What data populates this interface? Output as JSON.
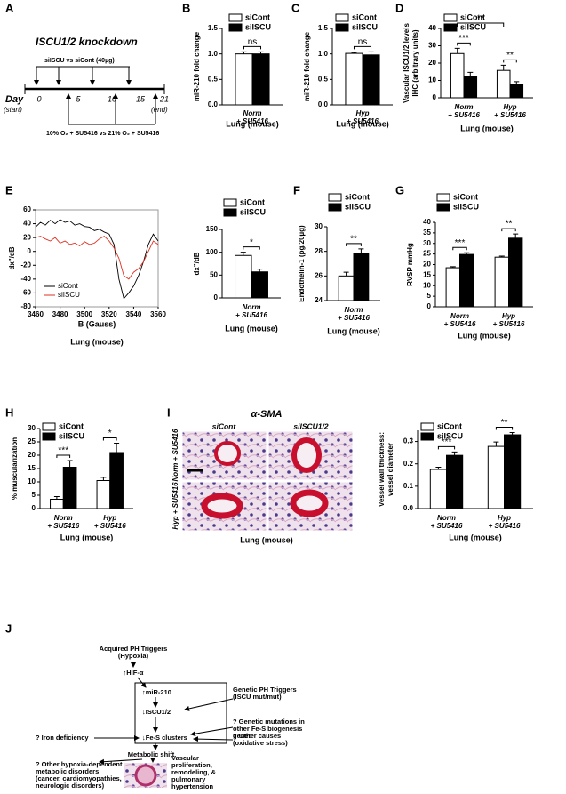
{
  "panels": [
    "A",
    "B",
    "C",
    "D",
    "E",
    "F",
    "G",
    "H",
    "I",
    "J"
  ],
  "timeline": {
    "title": "ISCU1/2 knockdown",
    "treatment": "siISCU vs siCont (40µg)",
    "day_label": "Day",
    "days": [
      "0",
      "5",
      "10",
      "15",
      "21"
    ],
    "start": "(start)",
    "end": "(end)",
    "exposure": "10% O₂ + SU5416 vs 21% O₂ + SU5416"
  },
  "chart_data": [
    {
      "type": "bar",
      "ylabel": [
        "miR-210 fold change"
      ],
      "ylim": [
        0,
        1.5
      ],
      "yticks": [
        {
          "value": 0,
          "label": "0.0"
        },
        0.5,
        {
          "value": 1,
          "label": "1.0"
        },
        1.5
      ],
      "categories": [
        "Norm + SU5416"
      ],
      "xlabel": "Lung (mouse)",
      "series": [
        {
          "name": "siCont",
          "color": "#ffffff",
          "values": [
            1.0
          ],
          "errors": [
            0.04
          ]
        },
        {
          "name": "siISCU",
          "color": "#000000",
          "values": [
            1.0
          ],
          "errors": [
            0.04
          ]
        }
      ],
      "significance": [
        "ns"
      ]
    },
    {
      "type": "bar",
      "ylabel": [
        "miR-210 fold change"
      ],
      "ylim": [
        0,
        1.5
      ],
      "yticks": [
        {
          "value": 0,
          "label": "0.0"
        },
        0.5,
        {
          "value": 1,
          "label": "1.0"
        },
        1.5
      ],
      "categories": [
        "Hyp + SU5416"
      ],
      "xlabel": "Lung (mouse)",
      "series": [
        {
          "name": "siCont",
          "color": "#ffffff",
          "values": [
            1.01
          ],
          "errors": [
            0.02
          ]
        },
        {
          "name": "siISCU",
          "color": "#000000",
          "values": [
            0.98
          ],
          "errors": [
            0.06
          ]
        }
      ],
      "significance": [
        "ns"
      ]
    },
    {
      "type": "bar",
      "ylabel": [
        "Vascular ISCU1/2 levels",
        "IHC (arbitrary units)"
      ],
      "ylim": [
        0,
        40
      ],
      "yticks": [
        0,
        10,
        20,
        30,
        40
      ],
      "categories": [
        "Norm + SU5416",
        "Hyp + SU5416"
      ],
      "xlabel": "Lung (mouse)",
      "series": [
        {
          "name": "siCont",
          "color": "#ffffff",
          "values": [
            25.5,
            15.8
          ],
          "errors": [
            3,
            3
          ]
        },
        {
          "name": "siISCU",
          "color": "#000000",
          "values": [
            12.2,
            7.8
          ],
          "errors": [
            2.5,
            1.5
          ]
        }
      ],
      "significance": [
        "***",
        "**"
      ],
      "cross_significance": "**"
    },
    {
      "type": "line",
      "ylabel": [
        "dx\"/dB"
      ],
      "xlabel": "B (Gauss)",
      "caption": "Lung (mouse)",
      "xlim": [
        3460,
        3560
      ],
      "xticks": [
        3460,
        3480,
        3500,
        3520,
        3540,
        3560
      ],
      "ylim": [
        -80,
        60
      ],
      "yticks": [
        -80,
        -60,
        -40,
        -20,
        0,
        20,
        40,
        60
      ],
      "legend": "lower left",
      "x": [
        3460,
        3464,
        3468,
        3472,
        3476,
        3480,
        3484,
        3488,
        3492,
        3496,
        3500,
        3504,
        3508,
        3512,
        3516,
        3520,
        3524,
        3528,
        3532,
        3536,
        3540,
        3544,
        3548,
        3552,
        3556,
        3560
      ],
      "series": [
        {
          "name": "siCont",
          "color": "#000000",
          "values": [
            35,
            42,
            38,
            45,
            40,
            46,
            42,
            44,
            38,
            40,
            36,
            35,
            30,
            32,
            28,
            25,
            10,
            -40,
            -68,
            -60,
            -50,
            -35,
            -15,
            10,
            25,
            15
          ]
        },
        {
          "name": "siISCU",
          "color": "#e03020",
          "values": [
            20,
            22,
            18,
            15,
            20,
            12,
            15,
            10,
            12,
            8,
            14,
            10,
            12,
            18,
            22,
            15,
            5,
            -10,
            -35,
            -40,
            -30,
            -25,
            -15,
            0,
            15,
            10
          ]
        }
      ]
    },
    {
      "type": "bar",
      "ylabel": [
        "dx\"/dB"
      ],
      "ylim": [
        0,
        150
      ],
      "yticks": [
        0,
        50,
        100,
        150
      ],
      "categories": [
        "Norm + SU5416"
      ],
      "xlabel": "Lung (mouse)",
      "series": [
        {
          "name": "siCont",
          "color": "#ffffff",
          "values": [
            93
          ],
          "errors": [
            7
          ]
        },
        {
          "name": "siISCU",
          "color": "#000000",
          "values": [
            57
          ],
          "errors": [
            6
          ]
        }
      ],
      "significance": [
        "*"
      ]
    },
    {
      "type": "bar",
      "ylabel": [
        "Endothelin-1 (pg/20µg)"
      ],
      "ylim": [
        24,
        30
      ],
      "yticks": [
        24,
        26,
        28,
        30
      ],
      "categories": [
        "Norm + SU5416"
      ],
      "xlabel": "Lung (mouse)",
      "series": [
        {
          "name": "siCont",
          "color": "#ffffff",
          "values": [
            26
          ],
          "errors": [
            0.3
          ]
        },
        {
          "name": "siISCU",
          "color": "#000000",
          "values": [
            27.8
          ],
          "errors": [
            0.4
          ]
        }
      ],
      "significance": [
        "**"
      ]
    },
    {
      "type": "bar",
      "ylabel": [
        "RVSP mmHg"
      ],
      "ylim": [
        0,
        40
      ],
      "yticks": [
        0,
        5,
        10,
        15,
        20,
        25,
        30,
        35,
        40
      ],
      "categories": [
        "Norm + SU5416",
        "Hyp + SU5416"
      ],
      "xlabel": "Lung (mouse)",
      "series": [
        {
          "name": "siCont",
          "color": "#ffffff",
          "values": [
            18.5,
            23.5
          ],
          "errors": [
            0.5,
            0.5
          ]
        },
        {
          "name": "siISCU",
          "color": "#000000",
          "values": [
            24.8,
            32.5
          ],
          "errors": [
            0.8,
            2
          ]
        }
      ],
      "significance": [
        "***",
        "**"
      ]
    },
    {
      "type": "bar",
      "ylabel": [
        "% muscularization"
      ],
      "ylim": [
        0,
        30
      ],
      "yticks": [
        0,
        5,
        10,
        15,
        20,
        25,
        30
      ],
      "categories": [
        "Norm + SU5416",
        "Hyp + SU5416"
      ],
      "xlabel": "Lung (mouse)",
      "series": [
        {
          "name": "siCont",
          "color": "#ffffff",
          "values": [
            3.5,
            10.5
          ],
          "errors": [
            1,
            1.2
          ]
        },
        {
          "name": "siISCU",
          "color": "#000000",
          "values": [
            15.5,
            21
          ],
          "errors": [
            2.5,
            3.5
          ]
        }
      ],
      "significance": [
        "***",
        "*"
      ]
    },
    {
      "type": "bar",
      "ylabel": [
        "Vessel wall thickness:",
        "vessel diameter"
      ],
      "ylim": [
        0,
        0.35
      ],
      "yticks": [
        {
          "value": 0,
          "label": "0.0"
        },
        0.1,
        0.2,
        0.3
      ],
      "categories": [
        "Norm + SU5416",
        "Hyp + SU5416"
      ],
      "xlabel": "Lung (mouse)",
      "series": [
        {
          "name": "siCont",
          "color": "#ffffff",
          "values": [
            0.175,
            0.278
          ],
          "errors": [
            0.01,
            0.02
          ]
        },
        {
          "name": "siISCU",
          "color": "#000000",
          "values": [
            0.238,
            0.33
          ],
          "errors": [
            0.015,
            0.01
          ]
        }
      ],
      "significance": [
        "***",
        "**"
      ]
    }
  ],
  "micrograph": {
    "title": "α-SMA",
    "columns": [
      "siCont",
      "siISCU1/2"
    ],
    "rows": [
      "Norm + SU5416",
      "Hyp + SU5416"
    ],
    "caption": "Lung (mouse)"
  },
  "diagram": {
    "nodes": [
      {
        "lines": [
          "Acquired PH Triggers",
          "(Hypoxia)"
        ],
        "color": "#000000"
      },
      {
        "lines": [
          "↑HIF-α"
        ],
        "color": "#000000"
      },
      {
        "lines": [
          "↑miR-210"
        ],
        "color": "#000000"
      },
      {
        "lines": [
          "Genetic PH Triggers",
          "(ISCU mut/mut)"
        ],
        "color": "#000000"
      },
      {
        "lines": [
          "↓ISCU1/2"
        ],
        "color": "#000000"
      },
      {
        "lines": [
          "? Genetic mutations in",
          "other Fe-S biogenesis",
          "genes"
        ],
        "color": "#9b1c1c"
      },
      {
        "lines": [
          "? Iron deficiency"
        ],
        "color": "#9b1c1c"
      },
      {
        "lines": [
          "↓Fe-S clusters"
        ],
        "color": "#000000"
      },
      {
        "lines": [
          "? Other causes",
          "(oxidative stress)"
        ],
        "color": "#9b1c1c"
      },
      {
        "lines": [
          "Metabolic shift"
        ],
        "color": "#000000"
      },
      {
        "lines": [
          "? Other hypoxia-dependent",
          "metabolic disorders",
          "(cancer, cardiomyopathies,",
          "neurologic disorders)"
        ],
        "color": "#9b1c1c"
      },
      {
        "lines": [
          "Vascular",
          "proliferation,",
          "remodeling, &",
          "pulmonary",
          "hypertension"
        ],
        "color": "#000000"
      }
    ]
  }
}
